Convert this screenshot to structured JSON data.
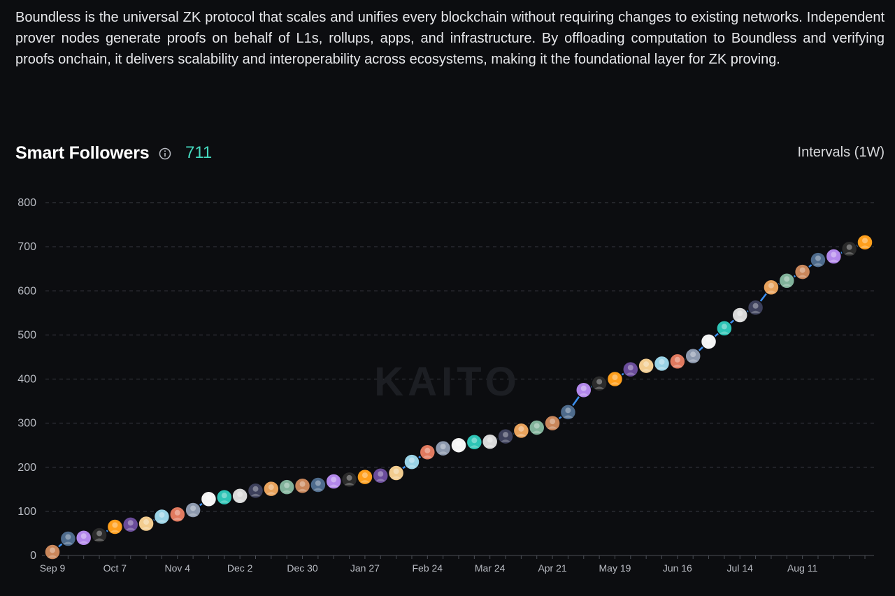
{
  "description": "Boundless is the universal ZK protocol that scales and unifies every blockchain without requiring changes to existing networks. Independent prover nodes generate proofs on behalf of L1s, rollups, apps, and infrastructure. By offloading computation to Boundless and verifying proofs onchain, it delivers scalability and interoperability across ecosystems, making it the foundational layer for ZK proving.",
  "header": {
    "title": "Smart Followers",
    "count": "711",
    "intervals": "Intervals (1W)"
  },
  "watermark": "KAITO",
  "colors": {
    "line": "#3b8ff0",
    "count": "#45d8be",
    "grid": "#3a3d44",
    "axis_text": "#b9bcc3"
  },
  "chart_data": {
    "type": "line",
    "title": "Smart Followers",
    "ylim": [
      0,
      800
    ],
    "y_ticks": [
      0,
      100,
      200,
      300,
      400,
      500,
      600,
      700,
      800
    ],
    "x_tick_labels": [
      "Sep 9",
      "Oct 7",
      "Nov 4",
      "Dec 2",
      "Dec 30",
      "Jan 27",
      "Feb 24",
      "Mar 24",
      "Apr 21",
      "May 19",
      "Jun 16",
      "Jul 14",
      "Aug 11"
    ],
    "grid": true,
    "marker": "avatar",
    "series": [
      {
        "values": [
          8,
          38,
          40,
          46,
          65,
          70,
          72,
          88,
          93,
          103,
          128,
          132,
          135,
          147,
          151,
          155,
          158,
          160,
          168,
          172,
          178,
          181,
          187,
          212,
          234,
          243,
          250,
          257,
          258,
          270,
          283,
          290,
          300,
          325,
          375,
          390,
          400,
          422,
          430,
          435,
          440,
          452,
          485,
          515,
          545,
          562,
          608,
          623,
          643,
          670,
          678,
          695,
          710
        ]
      }
    ]
  }
}
